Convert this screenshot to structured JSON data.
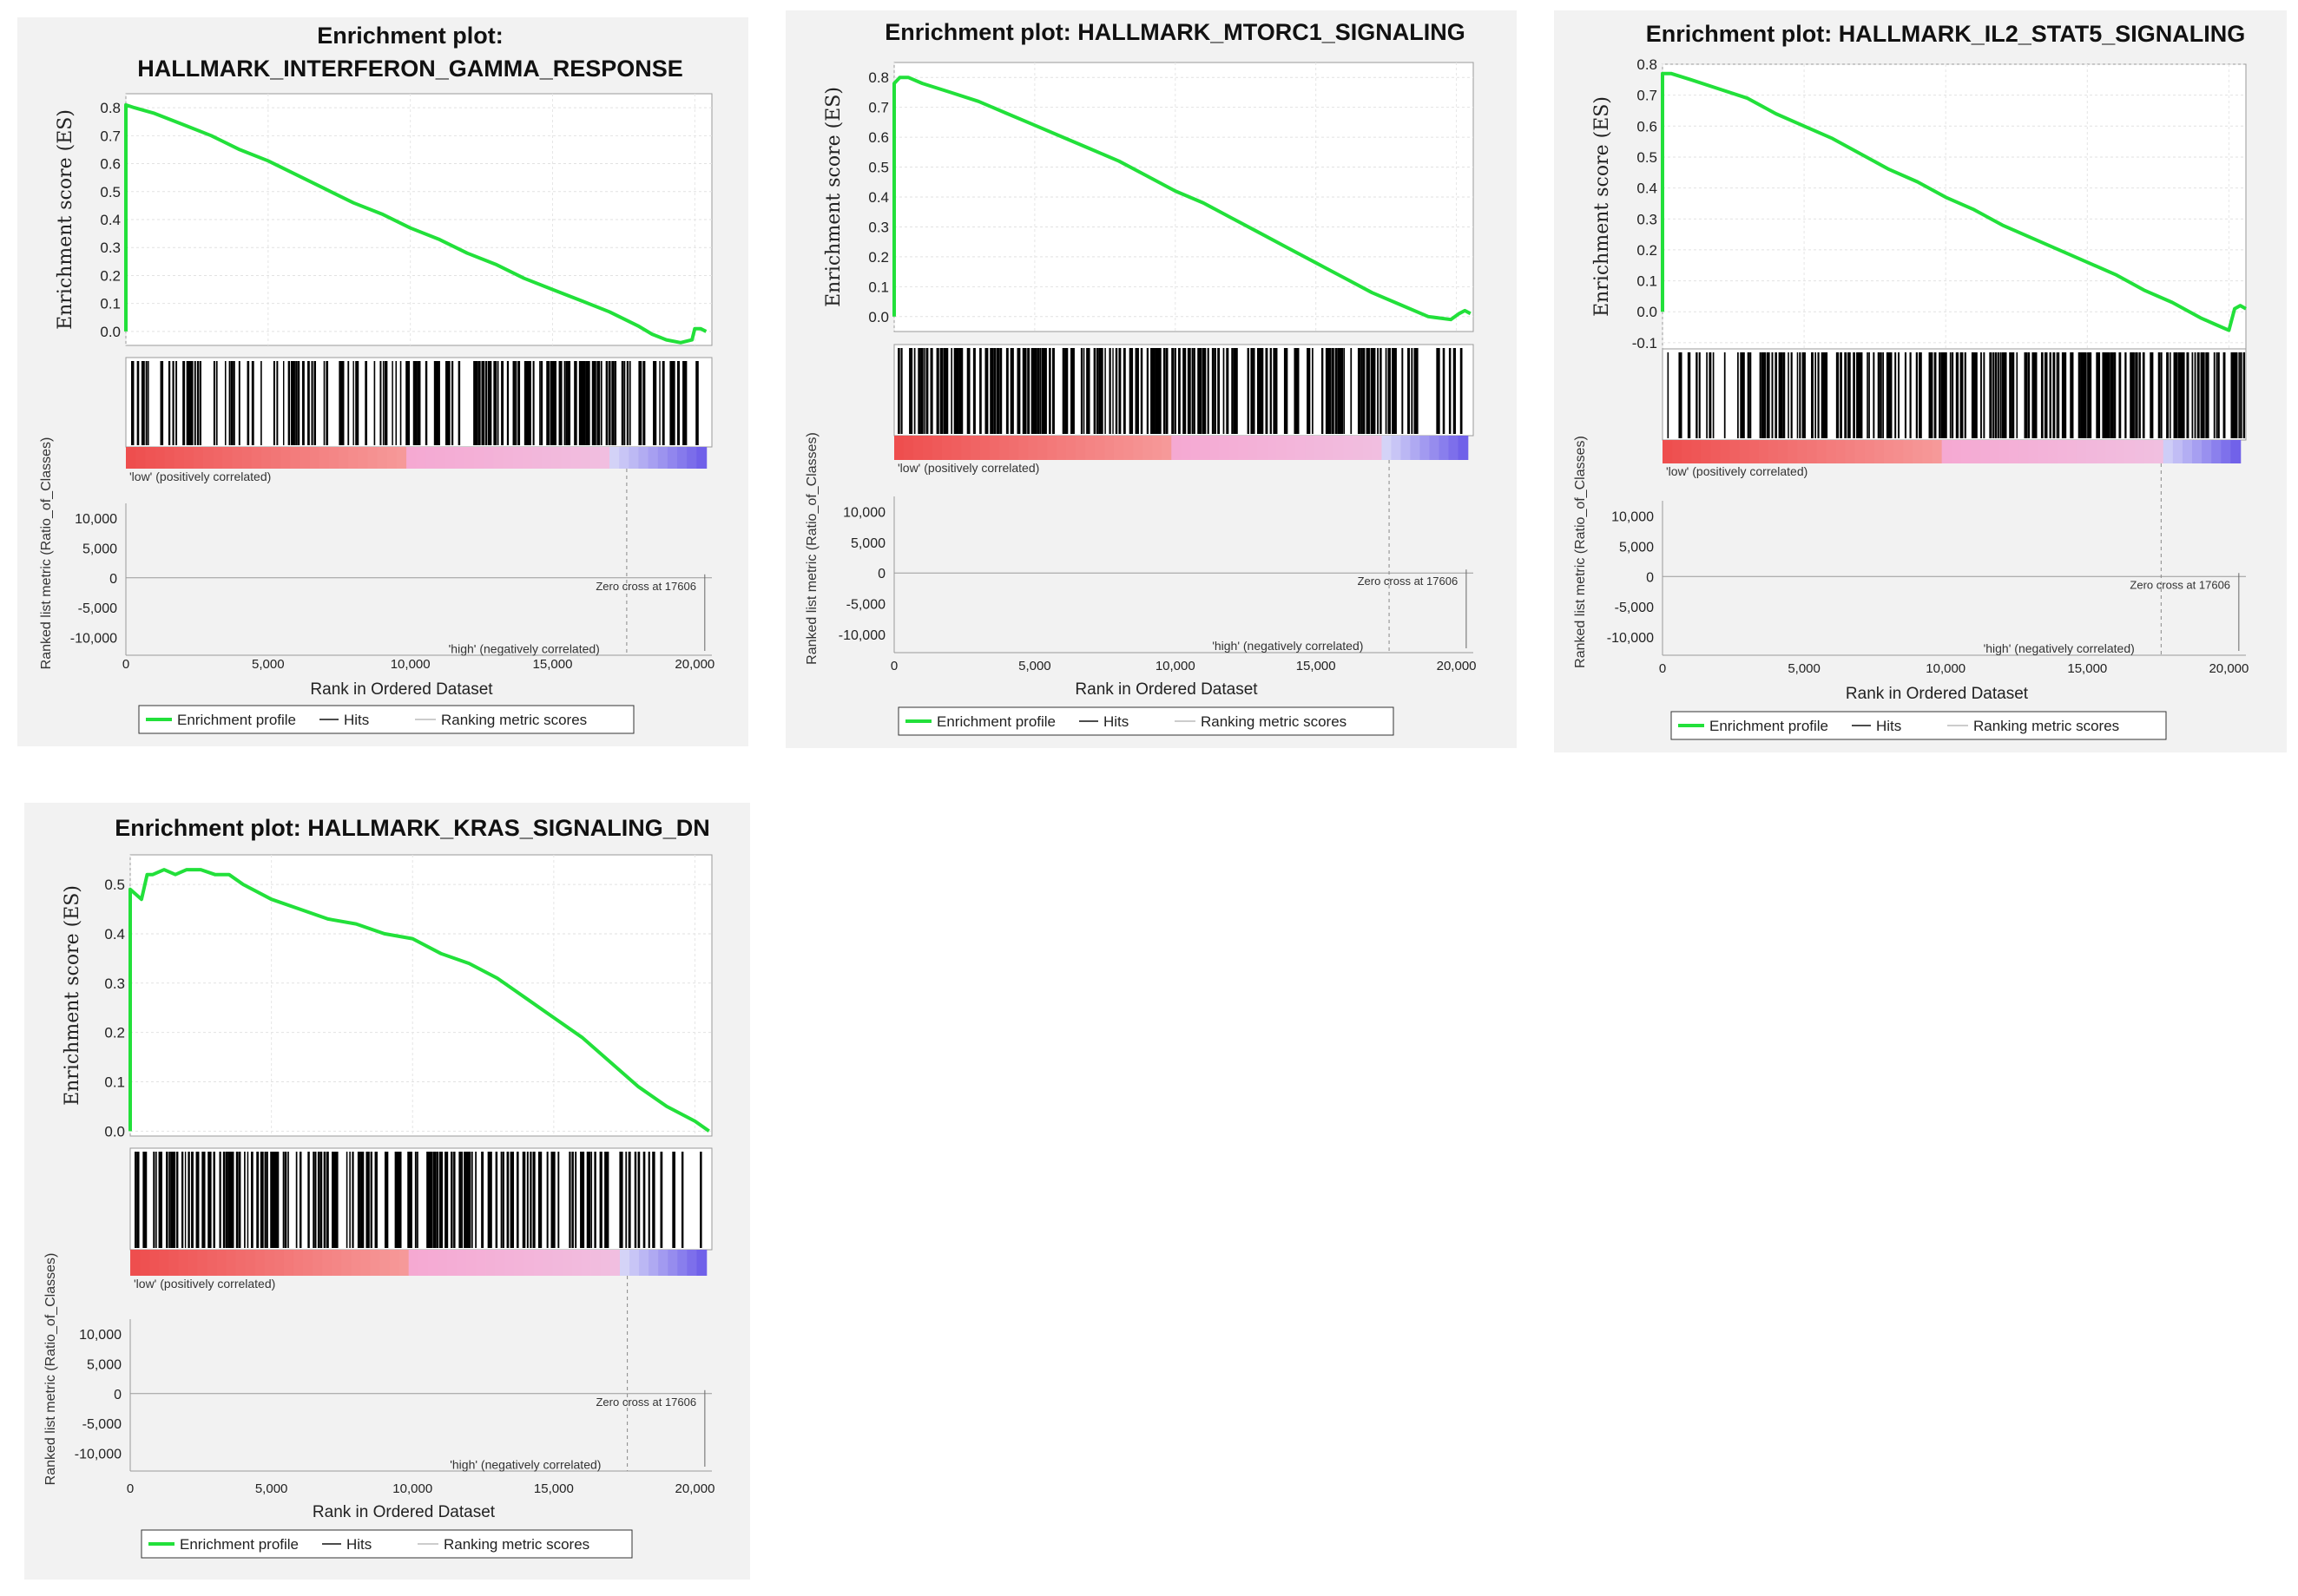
{
  "colors": {
    "es_line": "#22e03a",
    "hit_line": "#000000",
    "pos_label": "#ee3333",
    "neg_label": "#3333dd",
    "panel_bg": "#f2f2f2",
    "plot_bg": "#ffffff"
  },
  "chart_data": [
    {
      "type": "line",
      "title_lines": [
        "Enrichment plot:",
        "HALLMARK_INTERFERON_GAMMA_RESPONSE"
      ],
      "ylabel": "Enrichment score (ES)",
      "ylim": [
        -0.05,
        0.85
      ],
      "es_ticks": [
        "0.8",
        "0.7",
        "0.6",
        "0.5",
        "0.4",
        "0.3",
        "0.2",
        "0.1",
        "0.0"
      ],
      "es_tick_values": [
        0.8,
        0.7,
        0.6,
        0.5,
        0.4,
        0.3,
        0.2,
        0.1,
        0.0
      ],
      "es_curve": {
        "x": [
          0,
          300,
          1000,
          2000,
          3000,
          4000,
          5000,
          6000,
          7000,
          8000,
          9000,
          10000,
          11000,
          12000,
          13000,
          14000,
          15000,
          16000,
          17000,
          18000,
          18500,
          19000,
          19500,
          19900,
          20000,
          20200,
          20400
        ],
        "y": [
          0.81,
          0.8,
          0.78,
          0.74,
          0.7,
          0.65,
          0.61,
          0.56,
          0.51,
          0.46,
          0.42,
          0.37,
          0.33,
          0.28,
          0.24,
          0.19,
          0.15,
          0.11,
          0.07,
          0.02,
          -0.01,
          -0.03,
          -0.04,
          -0.03,
          0.01,
          0.01,
          0.0
        ]
      },
      "hits_density": [
        0.5,
        0.5,
        0.5,
        0.45,
        0.4,
        0.4,
        0.35,
        0.35,
        0.3,
        0.45,
        0.5,
        0.6,
        0.6,
        0.7,
        0.9,
        0.9,
        0.95,
        0.7,
        0.5,
        0.6,
        0.4
      ],
      "heat_split": [
        9800,
        17000
      ],
      "pos_label": "'low' (positively correlated)",
      "neg_label": "'high' (negatively correlated)",
      "zero_cross": "Zero cross at 17606",
      "zero_cross_value": 17606,
      "metric_ylabel": "Ranked list metric (Ratio_of_Classes)",
      "metric_ticks": [
        "10,000",
        "5,000",
        "0",
        "-5,000",
        "-10,000"
      ],
      "metric_tick_values": [
        10000,
        5000,
        0,
        -5000,
        -10000
      ],
      "metric_ylim": [
        -13000,
        12500
      ],
      "x_ticks": [
        "0",
        "5,000",
        "10,000",
        "15,000",
        "20,000"
      ],
      "x_tick_values": [
        0,
        5000,
        10000,
        15000,
        20000
      ],
      "xlim": [
        0,
        20600
      ],
      "xlabel": "Rank in Ordered Dataset",
      "legend": [
        "Enrichment profile",
        "Hits",
        "Ranking metric scores"
      ]
    },
    {
      "type": "line",
      "title_lines": [
        "Enrichment plot: HALLMARK_MTORC1_SIGNALING"
      ],
      "ylabel": "Enrichment score (ES)",
      "ylim": [
        -0.05,
        0.85
      ],
      "es_ticks": [
        "0.8",
        "0.7",
        "0.6",
        "0.5",
        "0.4",
        "0.3",
        "0.2",
        "0.1",
        "0.0"
      ],
      "es_tick_values": [
        0.8,
        0.7,
        0.6,
        0.5,
        0.4,
        0.3,
        0.2,
        0.1,
        0.0
      ],
      "es_curve": {
        "x": [
          0,
          200,
          500,
          1000,
          2000,
          3000,
          4000,
          5000,
          6000,
          7000,
          8000,
          9000,
          10000,
          11000,
          12000,
          13000,
          14000,
          15000,
          16000,
          17000,
          18000,
          19000,
          19800,
          20100,
          20300,
          20500
        ],
        "y": [
          0.78,
          0.8,
          0.8,
          0.78,
          0.75,
          0.72,
          0.68,
          0.64,
          0.6,
          0.56,
          0.52,
          0.47,
          0.42,
          0.38,
          0.33,
          0.28,
          0.23,
          0.18,
          0.13,
          0.08,
          0.04,
          0.0,
          -0.01,
          0.01,
          0.02,
          0.01
        ]
      },
      "hits_density": [
        0.8,
        0.85,
        0.8,
        0.8,
        0.85,
        0.8,
        0.8,
        0.75,
        0.8,
        0.8,
        0.85,
        0.8,
        0.75,
        0.8,
        0.8,
        0.75,
        0.7,
        0.8,
        0.6,
        0.4,
        0.3
      ],
      "heat_split": [
        9800,
        17400
      ],
      "pos_label": "'low' (positively correlated)",
      "neg_label": "'high' (negatively correlated)",
      "zero_cross": "Zero cross at 17606",
      "zero_cross_value": 17606,
      "metric_ylabel": "Ranked list metric (Ratio_of_Classes)",
      "metric_ticks": [
        "10,000",
        "5,000",
        "0",
        "-5,000",
        "-10,000"
      ],
      "metric_tick_values": [
        10000,
        5000,
        0,
        -5000,
        -10000
      ],
      "metric_ylim": [
        -13000,
        12500
      ],
      "x_ticks": [
        "0",
        "5,000",
        "10,000",
        "15,000",
        "20,000"
      ],
      "x_tick_values": [
        0,
        5000,
        10000,
        15000,
        20000
      ],
      "xlim": [
        0,
        20600
      ],
      "xlabel": "Rank in Ordered Dataset",
      "legend": [
        "Enrichment profile",
        "Hits",
        "Ranking metric scores"
      ]
    },
    {
      "type": "line",
      "title_lines": [
        "Enrichment plot: HALLMARK_IL2_STAT5_SIGNALING"
      ],
      "ylabel": "Enrichment score (ES)",
      "ylim": [
        -0.12,
        0.8
      ],
      "es_ticks": [
        "0.8",
        "0.7",
        "0.6",
        "0.5",
        "0.4",
        "0.3",
        "0.2",
        "0.1",
        "0.0",
        "-0.1"
      ],
      "es_tick_values": [
        0.8,
        0.7,
        0.6,
        0.5,
        0.4,
        0.3,
        0.2,
        0.1,
        0.0,
        -0.1
      ],
      "es_curve": {
        "x": [
          0,
          300,
          1000,
          2000,
          3000,
          4000,
          5000,
          6000,
          7000,
          8000,
          9000,
          10000,
          11000,
          12000,
          13000,
          14000,
          15000,
          16000,
          17000,
          18000,
          19000,
          19500,
          20000,
          20200,
          20400,
          20600
        ],
        "y": [
          0.77,
          0.77,
          0.75,
          0.72,
          0.69,
          0.64,
          0.6,
          0.56,
          0.51,
          0.46,
          0.42,
          0.37,
          0.33,
          0.28,
          0.24,
          0.2,
          0.16,
          0.12,
          0.07,
          0.03,
          -0.02,
          -0.04,
          -0.06,
          0.01,
          0.02,
          0.01
        ]
      },
      "hits_density": [
        0.3,
        0.3,
        0.4,
        0.55,
        0.6,
        0.6,
        0.65,
        0.6,
        0.7,
        0.7,
        0.75,
        0.7,
        0.75,
        0.8,
        0.8,
        0.85,
        0.85,
        0.8,
        0.85,
        0.8,
        0.6
      ],
      "heat_split": [
        9800,
        17600
      ],
      "pos_label": "'low' (positively correlated)",
      "neg_label": "'high' (negatively correlated)",
      "zero_cross": "Zero cross at 17606",
      "zero_cross_value": 17606,
      "metric_ylabel": "Ranked list metric (Ratio_of_Classes)",
      "metric_ticks": [
        "10,000",
        "5,000",
        "0",
        "-5,000",
        "-10,000"
      ],
      "metric_tick_values": [
        10000,
        5000,
        0,
        -5000,
        -10000
      ],
      "metric_ylim": [
        -13000,
        12500
      ],
      "x_ticks": [
        "0",
        "5,000",
        "10,000",
        "15,000",
        "20,000"
      ],
      "x_tick_values": [
        0,
        5000,
        10000,
        15000,
        20000
      ],
      "xlim": [
        0,
        20600
      ],
      "xlabel": "Rank in Ordered Dataset",
      "legend": [
        "Enrichment profile",
        "Hits",
        "Ranking metric scores"
      ]
    },
    {
      "type": "line",
      "title_lines": [
        "Enrichment plot: HALLMARK_KRAS_SIGNALING_DN"
      ],
      "ylabel": "Enrichment score (ES)",
      "ylim": [
        -0.01,
        0.56
      ],
      "es_ticks": [
        "0.5",
        "0.4",
        "0.3",
        "0.2",
        "0.1",
        "0.0"
      ],
      "es_tick_values": [
        0.5,
        0.4,
        0.3,
        0.2,
        0.1,
        0.0
      ],
      "es_curve": {
        "x": [
          0,
          200,
          400,
          600,
          800,
          1200,
          1600,
          2000,
          2500,
          3000,
          3500,
          4000,
          5000,
          6000,
          7000,
          8000,
          9000,
          10000,
          11000,
          12000,
          13000,
          14000,
          15000,
          16000,
          17000,
          18000,
          19000,
          20000,
          20500
        ],
        "y": [
          0.49,
          0.48,
          0.47,
          0.52,
          0.52,
          0.53,
          0.52,
          0.53,
          0.53,
          0.52,
          0.52,
          0.5,
          0.47,
          0.45,
          0.43,
          0.42,
          0.4,
          0.39,
          0.36,
          0.34,
          0.31,
          0.27,
          0.23,
          0.19,
          0.14,
          0.09,
          0.05,
          0.02,
          0.0
        ]
      },
      "hits_density": [
        0.8,
        0.85,
        0.8,
        0.75,
        0.7,
        0.7,
        0.6,
        0.7,
        0.75,
        0.8,
        0.85,
        0.85,
        0.8,
        0.75,
        0.7,
        0.6,
        0.7,
        0.65,
        0.55,
        0.35,
        0.05
      ],
      "heat_split": [
        9800,
        17400
      ],
      "pos_label": "'low' (positively correlated)",
      "neg_label": "'high' (negatively correlated)",
      "zero_cross": "Zero cross at 17606",
      "zero_cross_value": 17606,
      "metric_ylabel": "Ranked list metric (Ratio_of_Classes)",
      "metric_ticks": [
        "10,000",
        "5,000",
        "0",
        "-5,000",
        "-10,000"
      ],
      "metric_tick_values": [
        10000,
        5000,
        0,
        -5000,
        -10000
      ],
      "metric_ylim": [
        -13000,
        12500
      ],
      "x_ticks": [
        "0",
        "5,000",
        "10,000",
        "15,000",
        "20,000"
      ],
      "x_tick_values": [
        0,
        5000,
        10000,
        15000,
        20000
      ],
      "xlim": [
        0,
        20600
      ],
      "xlabel": "Rank in Ordered Dataset",
      "legend": [
        "Enrichment profile",
        "Hits",
        "Ranking metric scores"
      ]
    }
  ]
}
